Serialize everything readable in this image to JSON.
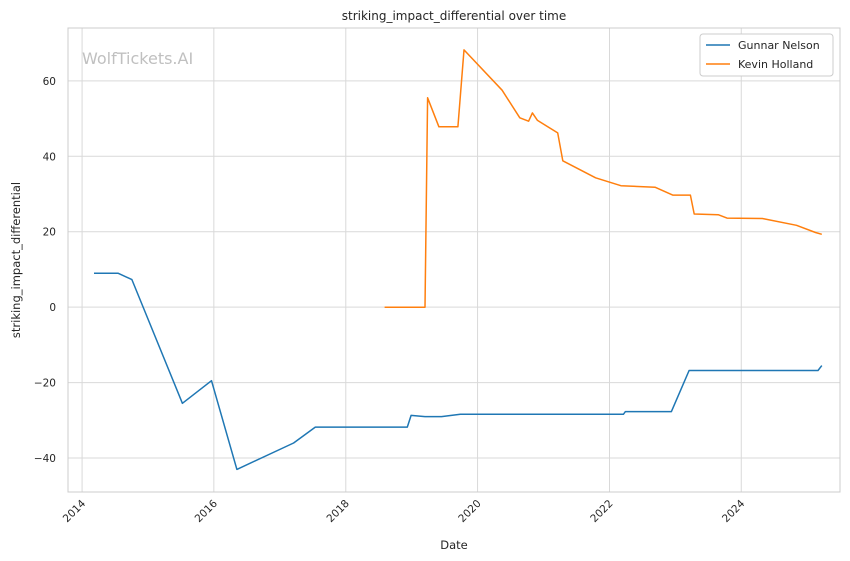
{
  "chart_data": {
    "type": "line",
    "title": "striking_impact_differential over time",
    "xlabel": "Date",
    "ylabel": "striking_impact_differential",
    "watermark": "WolfTickets.AI",
    "xlim": [
      "2013-10-15",
      "2025-07-01"
    ],
    "ylim": [
      -49,
      74
    ],
    "x_ticks": [
      {
        "value": "2014-01-01",
        "label": "2014"
      },
      {
        "value": "2016-01-01",
        "label": "2016"
      },
      {
        "value": "2018-01-01",
        "label": "2018"
      },
      {
        "value": "2020-01-01",
        "label": "2020"
      },
      {
        "value": "2022-01-01",
        "label": "2022"
      },
      {
        "value": "2024-01-01",
        "label": "2024"
      }
    ],
    "y_ticks": [
      {
        "value": -40,
        "label": "−40"
      },
      {
        "value": -20,
        "label": "−20"
      },
      {
        "value": 0,
        "label": "0"
      },
      {
        "value": 20,
        "label": "20"
      },
      {
        "value": 40,
        "label": "40"
      },
      {
        "value": 60,
        "label": "60"
      }
    ],
    "grid": true,
    "legend_position": "top-right",
    "series": [
      {
        "name": "Gunnar Nelson",
        "color": "#1f77b4",
        "points": [
          [
            "2014-03-08",
            9
          ],
          [
            "2014-07-19",
            9
          ],
          [
            "2014-10-04",
            7.3
          ],
          [
            "2015-07-11",
            -25.5
          ],
          [
            "2015-12-19",
            -19.5
          ],
          [
            "2016-05-08",
            -43
          ],
          [
            "2017-03-18",
            -36
          ],
          [
            "2017-07-16",
            -31.8
          ],
          [
            "2018-12-08",
            -31.8
          ],
          [
            "2018-12-29",
            -28.7
          ],
          [
            "2019-03-16",
            -29
          ],
          [
            "2019-06-15",
            -29
          ],
          [
            "2019-09-28",
            -28.4
          ],
          [
            "2022-03-19",
            -28.4
          ],
          [
            "2022-03-30",
            -27.7
          ],
          [
            "2022-12-10",
            -27.7
          ],
          [
            "2023-03-18",
            -16.8
          ],
          [
            "2025-03-01",
            -16.8
          ],
          [
            "2025-03-22",
            -15.5
          ]
        ]
      },
      {
        "name": "Kevin Holland",
        "color": "#ff7f0e",
        "points": [
          [
            "2018-08-04",
            0
          ],
          [
            "2019-03-16",
            0
          ],
          [
            "2019-03-30",
            55.5
          ],
          [
            "2019-06-01",
            47.8
          ],
          [
            "2019-09-14",
            47.8
          ],
          [
            "2019-10-18",
            68.2
          ],
          [
            "2020-05-16",
            57.5
          ],
          [
            "2020-08-22",
            50.2
          ],
          [
            "2020-10-10",
            49.3
          ],
          [
            "2020-10-31",
            51.5
          ],
          [
            "2020-11-28",
            49.5
          ],
          [
            "2021-03-20",
            46.2
          ],
          [
            "2021-04-17",
            38.8
          ],
          [
            "2021-10-16",
            34.3
          ],
          [
            "2022-03-05",
            32.2
          ],
          [
            "2022-09-10",
            31.8
          ],
          [
            "2022-12-17",
            29.7
          ],
          [
            "2023-03-25",
            29.7
          ],
          [
            "2023-04-15",
            24.7
          ],
          [
            "2023-08-26",
            24.5
          ],
          [
            "2023-10-14",
            23.6
          ],
          [
            "2024-04-27",
            23.5
          ],
          [
            "2024-11-02",
            21.7
          ],
          [
            "2025-02-15",
            19.8
          ],
          [
            "2025-03-22",
            19.3
          ]
        ]
      }
    ]
  }
}
